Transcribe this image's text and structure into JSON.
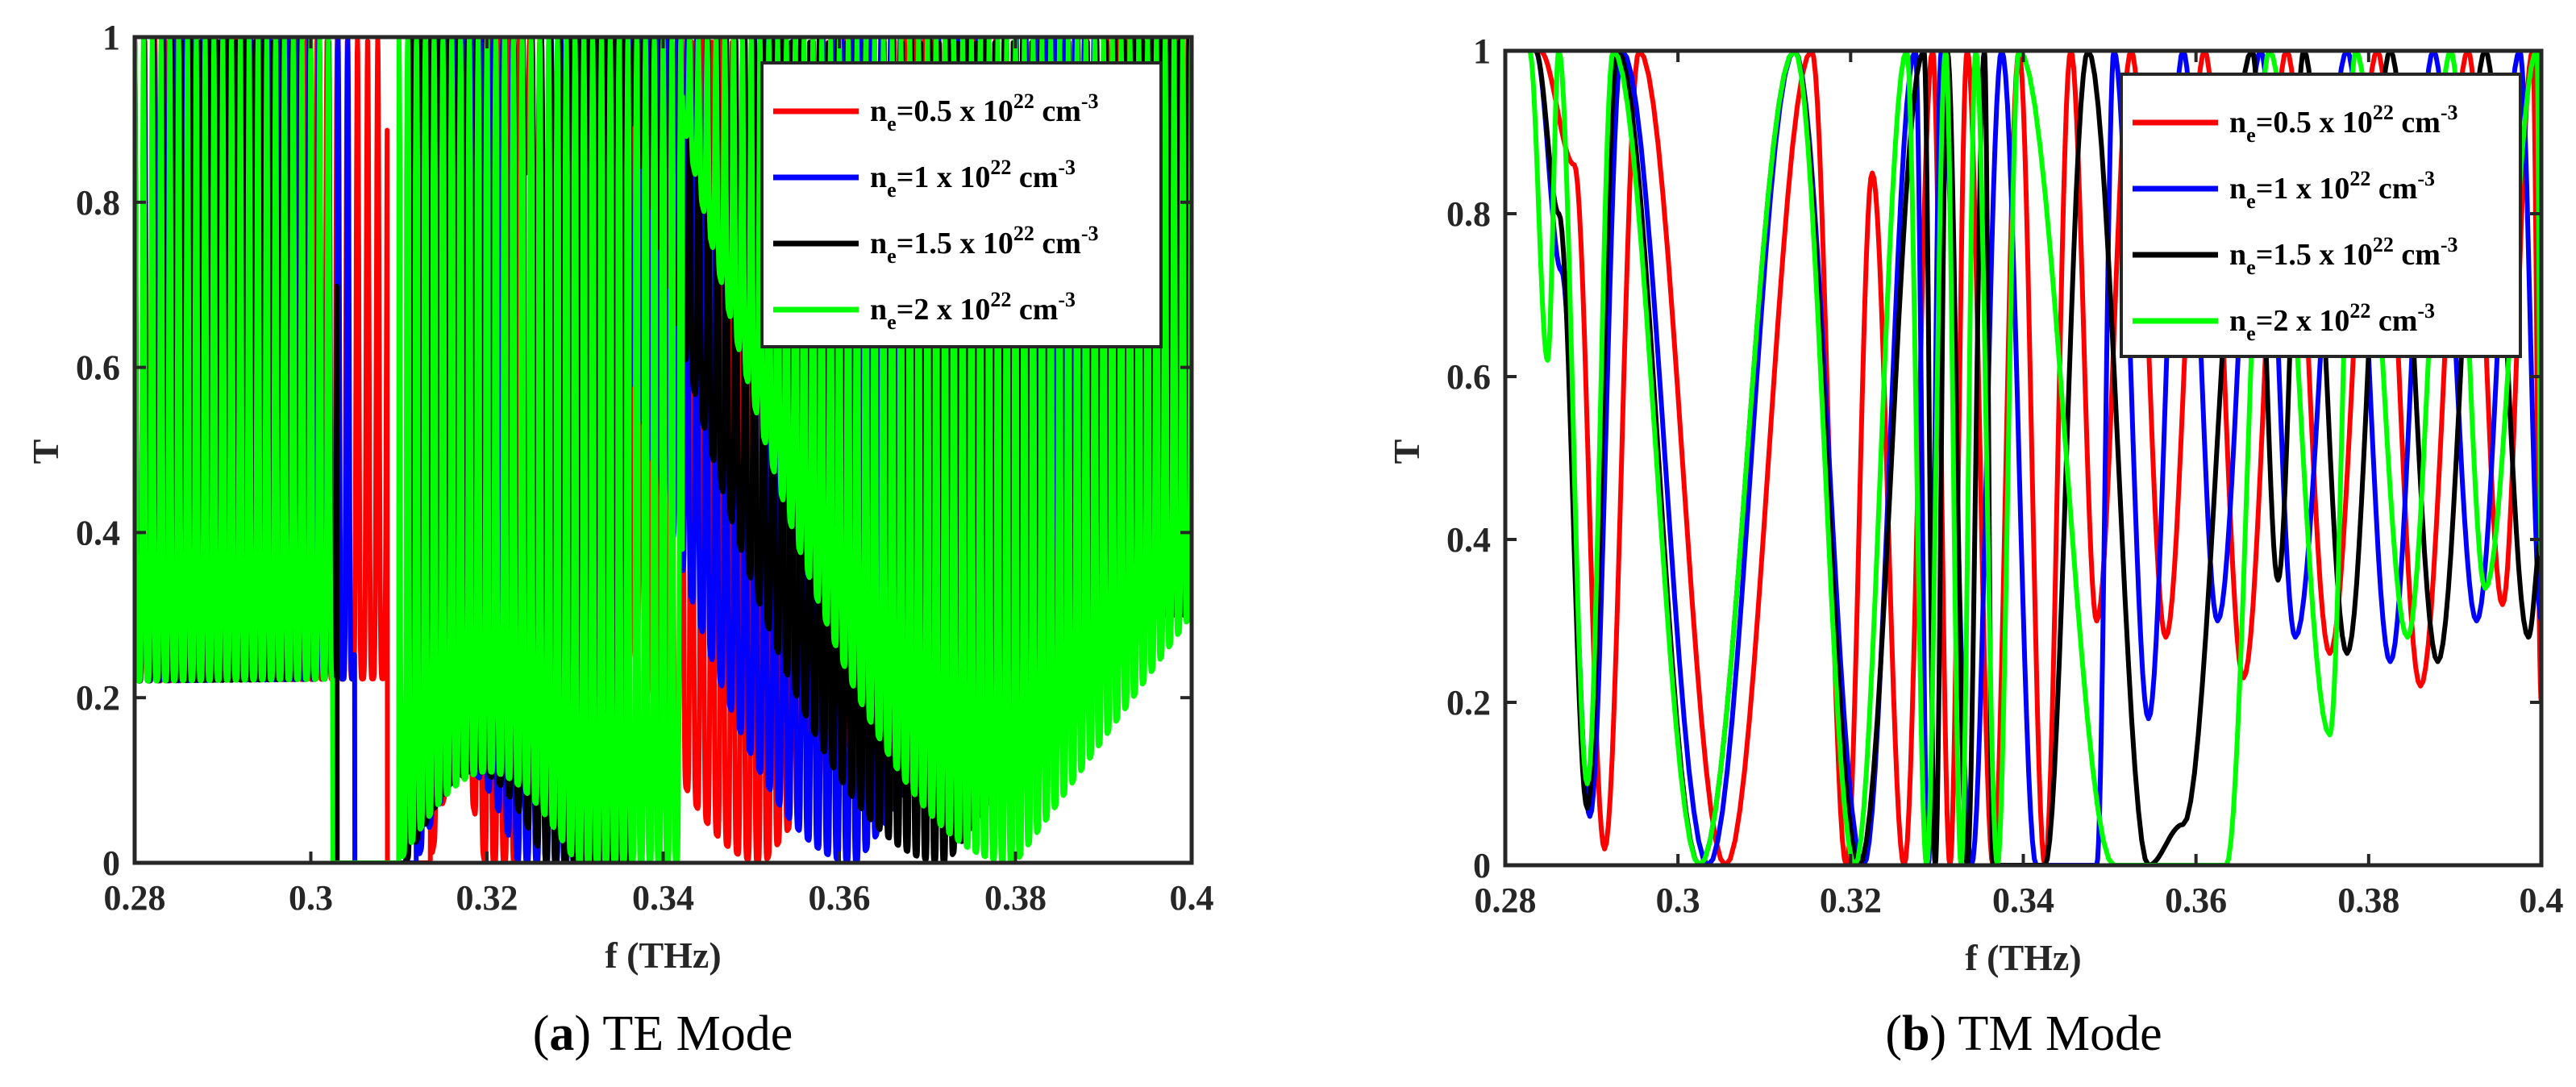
{
  "chart_data": [
    {
      "type": "line",
      "xlabel": "f (THz)",
      "ylabel": "T",
      "xlim": [
        0.28,
        0.4
      ],
      "ylim": [
        0,
        1
      ],
      "xticks": [
        "0.28",
        "0.3",
        "0.32",
        "0.34",
        "0.36",
        "0.38",
        "0.4"
      ],
      "yticks": [
        "0",
        "0.2",
        "0.4",
        "0.6",
        "0.8",
        "1"
      ],
      "caption_letter": "a",
      "caption_text": "TE Mode",
      "legend_position": "top-right",
      "grid": false,
      "series": [
        {
          "name_main": "n",
          "name_sub": "e",
          "name_mid": "=0.5 x 10",
          "name_sup": "22",
          "name_unit": " cm",
          "name_unit_sup": "-3",
          "color": "#ff0000",
          "band_edges": [
            0.3087,
            0.3136,
            0.3234,
            0.3515
          ],
          "inband_peaks": [
            [
              0.316,
              0.11
            ],
            [
              0.3195,
              0.11
            ],
            [
              0.3215,
              0.11
            ]
          ],
          "period": 0.00115,
          "baseline_start": 0.22
        },
        {
          "name_main": "n",
          "name_sub": "e",
          "name_mid": "=1 x 10",
          "name_sup": "22",
          "name_unit": " cm",
          "name_unit_sup": "-3",
          "color": "#0000ff",
          "band_edges": [
            0.305,
            0.312,
            0.3305,
            0.362
          ],
          "period": 0.0011,
          "baseline_start": 0.22
        },
        {
          "name_main": "n",
          "name_sub": "e",
          "name_mid": "=1.5 x 10",
          "name_sup": "22",
          "name_unit": " cm",
          "name_unit_sup": "-3",
          "color": "#000000",
          "band_edges": [
            0.303,
            0.3108,
            0.3362,
            0.3722
          ],
          "period": 0.00105,
          "baseline_start": 0.22
        },
        {
          "name_main": "n",
          "name_sub": "e",
          "name_mid": "=2 x 10",
          "name_sup": "22",
          "name_unit": " cm",
          "name_unit_sup": "-3",
          "color": "#00ff00",
          "band_edges": [
            0.3025,
            0.31,
            0.3422,
            0.38
          ],
          "period": 0.001,
          "baseline_start": 0.22
        }
      ]
    },
    {
      "type": "line",
      "xlabel": "f (THz)",
      "ylabel": "T",
      "xlim": [
        0.28,
        0.4
      ],
      "ylim": [
        0,
        1
      ],
      "xticks": [
        "0.28",
        "0.3",
        "0.32",
        "0.34",
        "0.36",
        "0.38",
        "0.4"
      ],
      "yticks": [
        "0",
        "0.2",
        "0.4",
        "0.6",
        "0.8",
        "1"
      ],
      "caption_letter": "b",
      "caption_text": "TM Mode",
      "legend_position": "top-right",
      "grid": false,
      "series": [
        {
          "name_main": "n",
          "name_sub": "e",
          "name_mid": "=0.5 x 10",
          "name_sup": "22",
          "name_unit": " cm",
          "name_unit_sup": "-3",
          "color": "#ff0000",
          "peaks": [
            [
              0.284,
              1.0
            ],
            [
              0.288,
              0.86
            ],
            [
              0.2955,
              1.0
            ],
            [
              0.3155,
              1.0
            ],
            [
              0.3225,
              0.85
            ],
            [
              0.3295,
              1.0
            ],
            [
              0.3335,
              1.0
            ],
            [
              0.3395,
              1.0
            ],
            [
              0.3455,
              1.0
            ],
            [
              0.3525,
              1.0
            ],
            [
              0.361,
              1.0
            ],
            [
              0.3705,
              1.0
            ],
            [
              0.381,
              1.0
            ],
            [
              0.3915,
              1.0
            ],
            [
              0.399,
              1.0
            ]
          ],
          "valleys": [
            [
              0.2915,
              0.02
            ],
            [
              0.3055,
              0.0
            ],
            [
              0.3195,
              0.0
            ],
            [
              0.3262,
              0.0
            ],
            [
              0.3315,
              0.0
            ],
            [
              0.3365,
              0.0
            ],
            [
              0.3425,
              0.0
            ],
            [
              0.3485,
              0.3
            ],
            [
              0.3565,
              0.28
            ],
            [
              0.3655,
              0.23
            ],
            [
              0.3755,
              0.26
            ],
            [
              0.386,
              0.22
            ],
            [
              0.3955,
              0.32
            ],
            [
              0.4,
              0.2
            ]
          ]
        },
        {
          "name_main": "n",
          "name_sub": "e",
          "name_mid": "=1 x 10",
          "name_sup": "22",
          "name_unit": " cm",
          "name_unit_sup": "-3",
          "color": "#0000ff",
          "peaks": [
            [
              0.2835,
              1.0
            ],
            [
              0.2865,
              0.73
            ],
            [
              0.2935,
              1.0
            ],
            [
              0.3135,
              1.0
            ],
            [
              0.3275,
              1.0
            ],
            [
              0.3305,
              1.0
            ],
            [
              0.3375,
              1.0
            ],
            [
              0.3505,
              1.0
            ],
            [
              0.3585,
              1.0
            ],
            [
              0.3675,
              1.0
            ],
            [
              0.3775,
              1.0
            ],
            [
              0.3875,
              1.0
            ],
            [
              0.3975,
              1.0
            ]
          ],
          "valleys": [
            [
              0.2898,
              0.06
            ],
            [
              0.3035,
              0.0
            ],
            [
              0.3215,
              0.0
            ],
            [
              0.329,
              0.0
            ],
            [
              0.334,
              0.0
            ],
            [
              0.3415,
              0.0
            ],
            [
              0.3485,
              0.0
            ],
            [
              0.3545,
              0.18
            ],
            [
              0.3625,
              0.3
            ],
            [
              0.3715,
              0.28
            ],
            [
              0.3825,
              0.25
            ],
            [
              0.3925,
              0.3
            ],
            [
              0.4,
              0.3
            ]
          ]
        },
        {
          "name_main": "n",
          "name_sub": "e",
          "name_mid": "=1.5 x 10",
          "name_sup": "22",
          "name_unit": " cm",
          "name_unit_sup": "-3",
          "color": "#000000",
          "peaks": [
            [
              0.2835,
              1.0
            ],
            [
              0.2862,
              0.8
            ],
            [
              0.293,
              1.0
            ],
            [
              0.3135,
              1.0
            ],
            [
              0.3285,
              1.0
            ],
            [
              0.3312,
              1.0
            ],
            [
              0.3355,
              1.0
            ],
            [
              0.3475,
              1.0
            ],
            [
              0.3665,
              1.0
            ],
            [
              0.3725,
              1.0
            ],
            [
              0.3825,
              1.0
            ],
            [
              0.3935,
              1.0
            ]
          ],
          "valleys": [
            [
              0.2895,
              0.07
            ],
            [
              0.3025,
              0.0
            ],
            [
              0.321,
              0.0
            ],
            [
              0.3298,
              0.0
            ],
            [
              0.3335,
              0.0
            ],
            [
              0.3365,
              0.0
            ],
            [
              0.3425,
              0.0
            ],
            [
              0.3545,
              0.0
            ],
            [
              0.3585,
              0.05
            ],
            [
              0.3695,
              0.35
            ],
            [
              0.3775,
              0.26
            ],
            [
              0.388,
              0.25
            ],
            [
              0.3985,
              0.28
            ],
            [
              0.4,
              0.4
            ]
          ]
        },
        {
          "name_main": "n",
          "name_sub": "e",
          "name_mid": "=2 x 10",
          "name_sup": "22",
          "name_unit": " cm",
          "name_unit_sup": "-3",
          "color": "#00ff00",
          "peaks": [
            [
              0.2828,
              1.0
            ],
            [
              0.2862,
              1.0
            ],
            [
              0.2925,
              1.0
            ],
            [
              0.3135,
              1.0
            ],
            [
              0.3265,
              1.0
            ],
            [
              0.331,
              1.0
            ],
            [
              0.3345,
              1.0
            ],
            [
              0.3395,
              1.0
            ],
            [
              0.3685,
              1.0
            ],
            [
              0.3785,
              1.0
            ],
            [
              0.3895,
              1.0
            ],
            [
              0.3995,
              1.0
            ]
          ],
          "valleys": [
            [
              0.2849,
              0.62
            ],
            [
              0.2895,
              0.1
            ],
            [
              0.3025,
              0.0
            ],
            [
              0.3205,
              0.0
            ],
            [
              0.3288,
              0.0
            ],
            [
              0.3328,
              0.0
            ],
            [
              0.337,
              0.0
            ],
            [
              0.3505,
              0.0
            ],
            [
              0.3635,
              0.0
            ],
            [
              0.3755,
              0.16
            ],
            [
              0.3845,
              0.28
            ],
            [
              0.3935,
              0.34
            ],
            [
              0.4,
              0.38
            ]
          ]
        }
      ]
    }
  ]
}
